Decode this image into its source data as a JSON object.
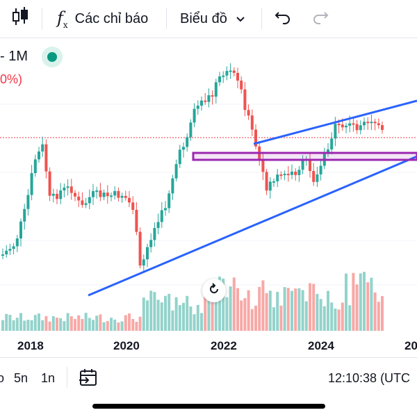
{
  "toolbar": {
    "indicators_label": "Các chỉ báo",
    "chart_type_label": "Biểu đồ"
  },
  "legend": {
    "interval": "- 1M",
    "change": "0%)"
  },
  "x_axis": {
    "labels": [
      "2018",
      "2020",
      "2022",
      "2024",
      "20"
    ]
  },
  "bottom": {
    "ranges": [
      "o",
      "5n",
      "1n"
    ],
    "clock": "12:10:38 (UTC"
  },
  "colors": {
    "up": "#26a69a",
    "down": "#ef5350",
    "trendline": "#2962ff",
    "zone": "#9c27b0",
    "volume_up": "#93d3cb",
    "volume_down": "#f7a9a7"
  },
  "chart_data": {
    "type": "candlestick",
    "interval": "1M",
    "x_labels": [
      "2018",
      "2020",
      "2022",
      "2024"
    ],
    "drawings": [
      "ascending trendline (lower)",
      "ascending trendline (upper)",
      "horizontal zone rectangle"
    ]
  }
}
